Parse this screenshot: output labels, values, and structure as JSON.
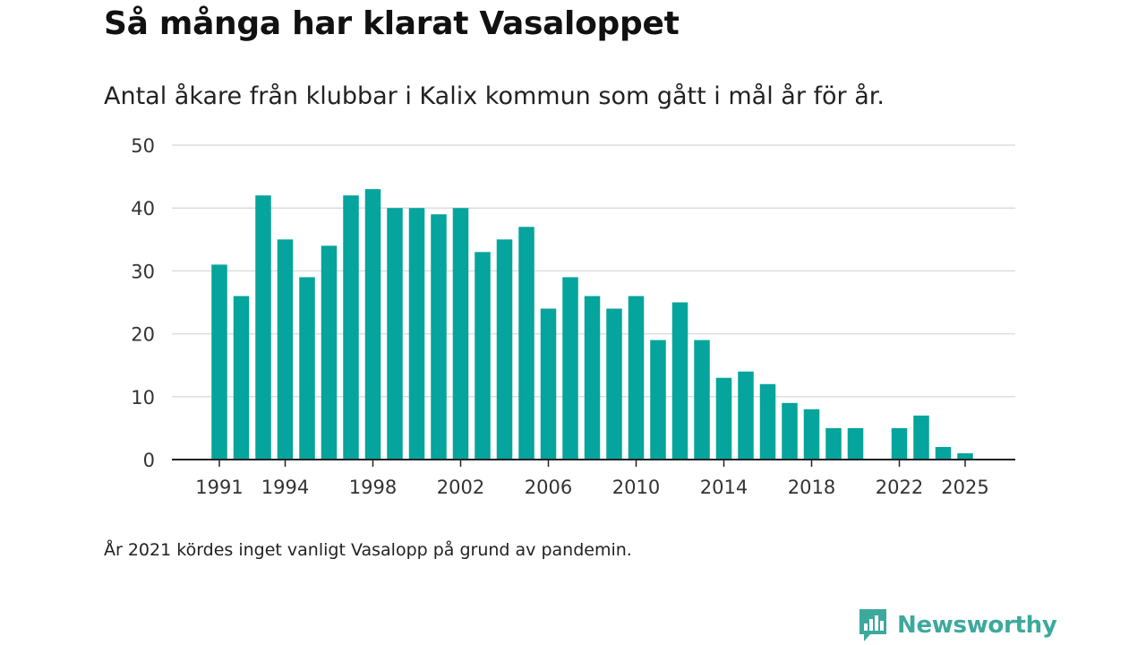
{
  "header": {
    "title": "Så många har klarat Vasaloppet",
    "subtitle": "Antal åkare från klubbar i Kalix kommun som gått i mål år för år."
  },
  "footer": {
    "note": "År 2021 kördes inget vanligt Vasalopp på grund av pandemin.",
    "brand": "Newsworthy"
  },
  "colors": {
    "bar": "#05a49c",
    "grid": "#dddddd",
    "axis": "#222222",
    "brand": "#3da99d"
  },
  "chart_data": {
    "type": "bar",
    "title": "Så många har klarat Vasaloppet",
    "xlabel": "",
    "ylabel": "",
    "ylim": [
      0,
      50
    ],
    "yticks": [
      0,
      10,
      20,
      30,
      40,
      50
    ],
    "xtick_labels": [
      "1991",
      "1994",
      "1998",
      "2002",
      "2006",
      "2010",
      "2014",
      "2018",
      "2022",
      "2025"
    ],
    "grid": true,
    "categories": [
      "1991",
      "1992",
      "1993",
      "1994",
      "1995",
      "1996",
      "1997",
      "1998",
      "1999",
      "2000",
      "2001",
      "2002",
      "2003",
      "2004",
      "2005",
      "2006",
      "2007",
      "2008",
      "2009",
      "2010",
      "2011",
      "2012",
      "2013",
      "2014",
      "2015",
      "2016",
      "2017",
      "2018",
      "2019",
      "2020",
      "2021",
      "2022",
      "2023",
      "2024",
      "2025"
    ],
    "values": [
      31,
      26,
      42,
      35,
      29,
      34,
      42,
      43,
      40,
      40,
      39,
      40,
      33,
      35,
      37,
      24,
      29,
      26,
      24,
      26,
      19,
      25,
      19,
      13,
      14,
      12,
      9,
      8,
      5,
      5,
      null,
      5,
      7,
      2,
      1
    ]
  }
}
